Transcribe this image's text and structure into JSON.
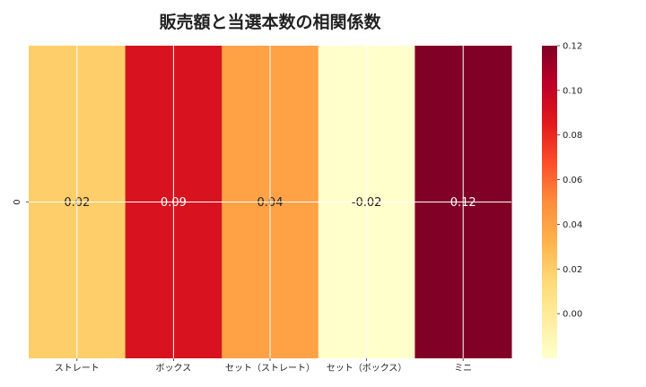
{
  "chart_data": {
    "type": "heatmap",
    "title": "販売額と当選本数の相関係数",
    "rows": [
      "0"
    ],
    "categories": [
      "ストレート",
      "ボックス",
      "セット（ストレート）",
      "セット（ボックス）",
      "ミニ"
    ],
    "values": [
      [
        0.02,
        0.09,
        0.04,
        -0.02,
        0.12
      ]
    ],
    "value_labels": [
      "0.02",
      "0.09",
      "0.04",
      "-0.02",
      "0.12"
    ],
    "colormap": "YlOrRd",
    "vmin": -0.02,
    "vmax": 0.12,
    "colorbar_ticks": [
      "0.00",
      "0.02",
      "0.04",
      "0.06",
      "0.08",
      "0.10",
      "0.12"
    ],
    "grid": true
  }
}
